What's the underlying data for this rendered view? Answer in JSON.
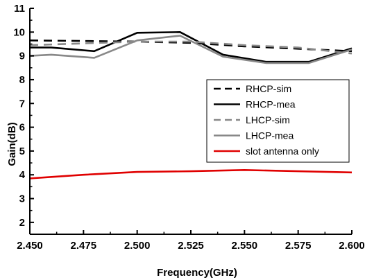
{
  "chart_data": {
    "type": "line",
    "xlabel": "Frequency(GHz)",
    "ylabel": "Gain(dB)",
    "xlim": [
      2.45,
      2.6
    ],
    "ylim": [
      1.5,
      11
    ],
    "xticks": [
      2.45,
      2.475,
      2.5,
      2.525,
      2.55,
      2.575,
      2.6
    ],
    "xtick_labels": [
      "2.450",
      "2.475",
      "2.500",
      "2.525",
      "2.550",
      "2.575",
      "2.600"
    ],
    "yticks": [
      2,
      3,
      4,
      5,
      6,
      7,
      8,
      9,
      10,
      11
    ],
    "ytick_labels": [
      "2",
      "3",
      "4",
      "5",
      "6",
      "7",
      "8",
      "9",
      "10",
      "11"
    ],
    "grid": false,
    "legend_position": "right",
    "series": [
      {
        "name": "RHCP-sim",
        "color": "#000000",
        "dash": "dashed",
        "x": [
          2.45,
          2.5,
          2.525,
          2.55,
          2.575,
          2.6
        ],
        "y": [
          9.65,
          9.6,
          9.55,
          9.4,
          9.3,
          9.2
        ]
      },
      {
        "name": "RHCP-mea",
        "color": "#000000",
        "dash": "solid",
        "x": [
          2.45,
          2.46,
          2.48,
          2.5,
          2.52,
          2.54,
          2.56,
          2.58,
          2.6
        ],
        "y": [
          9.35,
          9.35,
          9.2,
          9.97,
          10.0,
          9.05,
          8.75,
          8.75,
          9.32
        ]
      },
      {
        "name": "LHCP-sim",
        "color": "#888888",
        "dash": "dashed",
        "x": [
          2.45,
          2.5,
          2.525,
          2.55,
          2.575,
          2.6
        ],
        "y": [
          9.45,
          9.6,
          9.6,
          9.45,
          9.35,
          9.1
        ]
      },
      {
        "name": "LHCP-mea",
        "color": "#888888",
        "dash": "solid",
        "x": [
          2.45,
          2.46,
          2.48,
          2.5,
          2.52,
          2.54,
          2.56,
          2.58,
          2.6
        ],
        "y": [
          9.0,
          9.05,
          8.92,
          9.65,
          9.85,
          8.97,
          8.7,
          8.7,
          9.27
        ]
      },
      {
        "name": "slot antenna only",
        "color": "#e00000",
        "dash": "solid",
        "x": [
          2.45,
          2.475,
          2.5,
          2.525,
          2.55,
          2.575,
          2.6
        ],
        "y": [
          3.85,
          4.0,
          4.12,
          4.15,
          4.2,
          4.15,
          4.1
        ]
      }
    ]
  }
}
